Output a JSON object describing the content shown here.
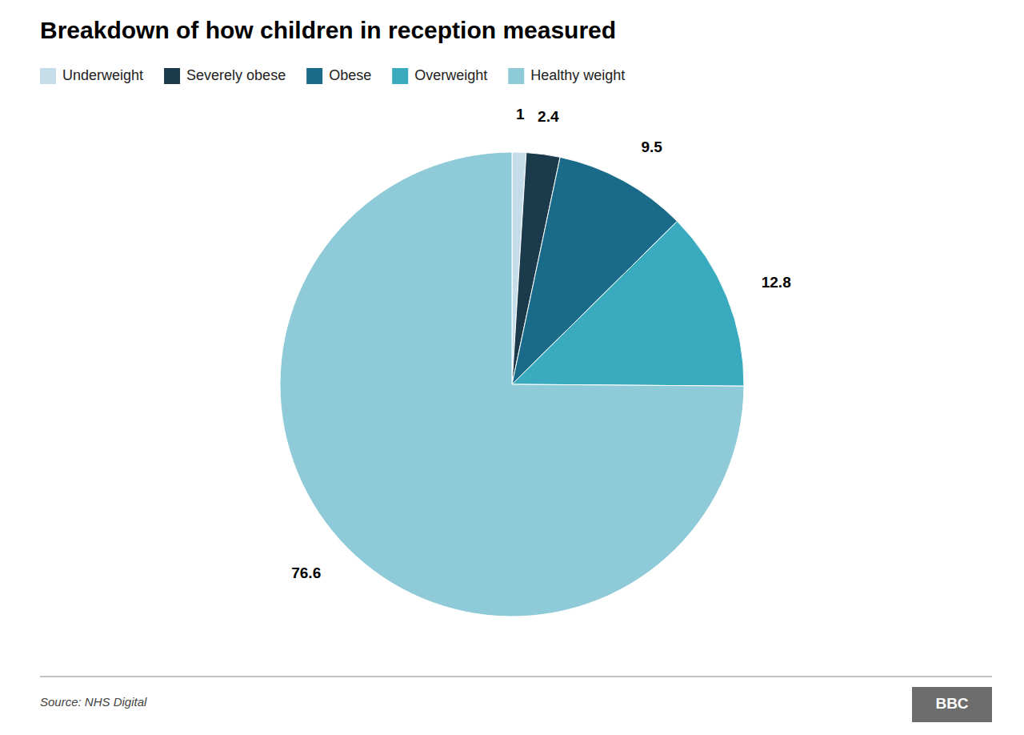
{
  "chart_data": {
    "type": "pie",
    "title": "Breakdown of how children in reception measured",
    "categories": [
      "Underweight",
      "Severely obese",
      "Obese",
      "Overweight",
      "Healthy weight"
    ],
    "values": [
      1.0,
      2.4,
      9.5,
      12.8,
      76.6
    ],
    "colors": [
      "#c5dde8",
      "#1b3a4b",
      "#1a6b8a",
      "#3aabbf",
      "#8ecad8"
    ],
    "data_labels": true,
    "legend": "top-left",
    "annotations": [
      "Source: NHS Digital",
      "BBC"
    ]
  }
}
